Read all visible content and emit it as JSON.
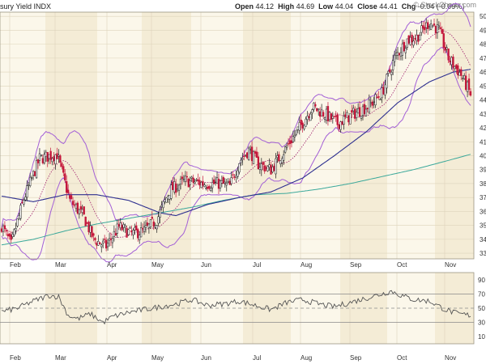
{
  "watermark": "© StockCharts.com",
  "header": {
    "title": "sury Yield",
    "exchange": "INDX",
    "open_label": "Open",
    "open": "44.12",
    "high_label": "High",
    "high": "44.69",
    "low_label": "Low",
    "low": "44.04",
    "close_label": "Close",
    "close": "44.41",
    "chg_label": "Chg",
    "chg": "-0.04 (-0.09%)"
  },
  "colors": {
    "band_light": "#fbf7ea",
    "band_dark": "#f4ecd6",
    "up": "#1a1a1a",
    "down": "#c4163a",
    "bollinger": "#a35fd6",
    "sma20": "#a0206e",
    "sma50": "#2d2f8f",
    "sma200": "#3aa89a",
    "rsi": "#555555"
  },
  "chart_data": [
    {
      "type": "candlestick",
      "title": "",
      "x_ticks": [
        "Feb",
        "Mar",
        "Apr",
        "May",
        "Jun",
        "Jul",
        "Aug",
        "Sep",
        "Oct",
        "Nov"
      ],
      "y_ticks": [
        33,
        34,
        35,
        36,
        37,
        38,
        39,
        40,
        41,
        42,
        43,
        44,
        45,
        46,
        47,
        48,
        49,
        50
      ],
      "ylim": [
        32.6,
        50.3
      ],
      "close_anchors": [
        [
          0,
          35.0
        ],
        [
          6,
          33.6
        ],
        [
          14,
          36.9
        ],
        [
          24,
          39.8
        ],
        [
          35,
          40.1
        ],
        [
          43,
          36.8
        ],
        [
          52,
          35.6
        ],
        [
          58,
          34.0
        ],
        [
          66,
          33.5
        ],
        [
          74,
          34.9
        ],
        [
          82,
          34.4
        ],
        [
          90,
          34.6
        ],
        [
          98,
          35.4
        ],
        [
          106,
          37.5
        ],
        [
          116,
          38.2
        ],
        [
          128,
          38.0
        ],
        [
          138,
          38.0
        ],
        [
          144,
          37.8
        ],
        [
          150,
          39.6
        ],
        [
          156,
          40.4
        ],
        [
          162,
          39.4
        ],
        [
          170,
          39.0
        ],
        [
          178,
          40.3
        ],
        [
          188,
          42.0
        ],
        [
          196,
          43.5
        ],
        [
          204,
          43.0
        ],
        [
          212,
          42.3
        ],
        [
          222,
          43.0
        ],
        [
          232,
          43.6
        ],
        [
          240,
          44.5
        ],
        [
          248,
          47.0
        ],
        [
          256,
          48.3
        ],
        [
          262,
          48.5
        ],
        [
          270,
          49.6
        ],
        [
          276,
          49.0
        ],
        [
          282,
          47.0
        ],
        [
          290,
          45.8
        ],
        [
          296,
          44.4
        ]
      ],
      "sma50_anchors": [
        [
          0,
          37.1
        ],
        [
          20,
          36.7
        ],
        [
          40,
          37.2
        ],
        [
          60,
          37.2
        ],
        [
          80,
          36.8
        ],
        [
          100,
          35.9
        ],
        [
          110,
          35.7
        ],
        [
          130,
          36.5
        ],
        [
          150,
          37.0
        ],
        [
          170,
          37.4
        ],
        [
          190,
          38.4
        ],
        [
          210,
          40.0
        ],
        [
          230,
          41.7
        ],
        [
          250,
          43.8
        ],
        [
          270,
          45.3
        ],
        [
          285,
          46.0
        ],
        [
          296,
          46.2
        ]
      ],
      "sma200_anchors": [
        [
          0,
          33.6
        ],
        [
          20,
          34.0
        ],
        [
          40,
          34.6
        ],
        [
          60,
          35.1
        ],
        [
          80,
          35.5
        ],
        [
          100,
          35.9
        ],
        [
          120,
          36.3
        ],
        [
          140,
          36.8
        ],
        [
          160,
          37.2
        ],
        [
          180,
          37.3
        ],
        [
          200,
          37.6
        ],
        [
          220,
          38.0
        ],
        [
          240,
          38.5
        ],
        [
          260,
          39.0
        ],
        [
          280,
          39.6
        ],
        [
          296,
          40.1
        ]
      ],
      "notes": [
        "20-day SMA (dotted)",
        "Bollinger Bands (20,2)",
        "50-day SMA",
        "200-day SMA"
      ]
    },
    {
      "type": "line",
      "title": "",
      "y_ticks": [
        90,
        70,
        50,
        30,
        10
      ],
      "ylim": [
        0,
        100
      ],
      "reference_lines": [
        70,
        50,
        30
      ],
      "rsi_anchors": [
        [
          0,
          45
        ],
        [
          10,
          50
        ],
        [
          20,
          60
        ],
        [
          30,
          68
        ],
        [
          36,
          66
        ],
        [
          42,
          40
        ],
        [
          48,
          35
        ],
        [
          56,
          42
        ],
        [
          64,
          30
        ],
        [
          70,
          38
        ],
        [
          80,
          44
        ],
        [
          90,
          48
        ],
        [
          100,
          52
        ],
        [
          110,
          56
        ],
        [
          120,
          62
        ],
        [
          130,
          54
        ],
        [
          140,
          56
        ],
        [
          150,
          60
        ],
        [
          160,
          54
        ],
        [
          170,
          48
        ],
        [
          180,
          58
        ],
        [
          190,
          62
        ],
        [
          200,
          56
        ],
        [
          210,
          52
        ],
        [
          220,
          58
        ],
        [
          230,
          64
        ],
        [
          240,
          70
        ],
        [
          246,
          74
        ],
        [
          252,
          68
        ],
        [
          260,
          62
        ],
        [
          270,
          60
        ],
        [
          280,
          48
        ],
        [
          288,
          42
        ],
        [
          296,
          40
        ]
      ]
    }
  ]
}
